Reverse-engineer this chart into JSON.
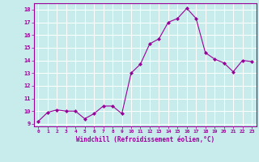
{
  "x": [
    0,
    1,
    2,
    3,
    4,
    5,
    6,
    7,
    8,
    9,
    10,
    11,
    12,
    13,
    14,
    15,
    16,
    17,
    18,
    19,
    20,
    21,
    22,
    23
  ],
  "y": [
    9.2,
    9.9,
    10.1,
    10.0,
    10.0,
    9.4,
    9.8,
    10.4,
    10.4,
    9.8,
    13.0,
    13.7,
    15.3,
    15.7,
    17.0,
    17.3,
    18.1,
    17.3,
    14.6,
    14.1,
    13.8,
    13.1,
    14.0,
    13.9
  ],
  "line_color": "#990099",
  "marker": "D",
  "marker_size": 2,
  "bg_color": "#c8ecec",
  "grid_color": "#ffffff",
  "xlabel": "Windchill (Refroidissement éolien,°C)",
  "xlabel_color": "#990099",
  "tick_color": "#990099",
  "ylabel_ticks": [
    9,
    10,
    11,
    12,
    13,
    14,
    15,
    16,
    17,
    18
  ],
  "xlim": [
    -0.5,
    23.5
  ],
  "ylim": [
    8.8,
    18.5
  ],
  "figsize": [
    3.2,
    2.0
  ],
  "dpi": 100
}
